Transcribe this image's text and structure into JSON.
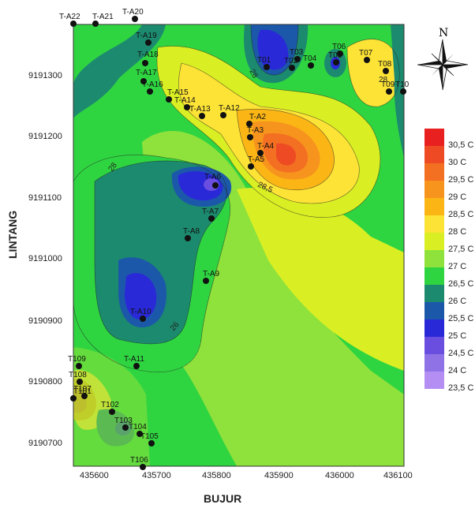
{
  "map": {
    "xlabel": "BUJUR",
    "ylabel": "LINTANG",
    "x_ticks": [
      "435600",
      "435700",
      "435800",
      "435900",
      "436000",
      "436100"
    ],
    "y_ticks": [
      "9191300",
      "9191200",
      "9191100",
      "9191000",
      "9190900",
      "9190800",
      "9190700"
    ],
    "north_label": "N",
    "contour_labels": [
      "28",
      "28",
      "28,5",
      "28",
      "26"
    ],
    "stations": [
      {
        "label": "T-A22"
      },
      {
        "label": "T-A21"
      },
      {
        "label": "T-A20"
      },
      {
        "label": "T-A19"
      },
      {
        "label": "T-A18"
      },
      {
        "label": "T-A17"
      },
      {
        "label": "T-A16"
      },
      {
        "label": "T-A15"
      },
      {
        "label": "T-A14"
      },
      {
        "label": "T-A13"
      },
      {
        "label": "T-A12"
      },
      {
        "label": "T-A2"
      },
      {
        "label": "T-A3"
      },
      {
        "label": "T-A4"
      },
      {
        "label": "T-A5"
      },
      {
        "label": "T-A6"
      },
      {
        "label": "T-A7"
      },
      {
        "label": "T-A8"
      },
      {
        "label": "T-A9"
      },
      {
        "label": "T-A10"
      },
      {
        "label": "T-A11"
      },
      {
        "label": "T01"
      },
      {
        "label": "T02"
      },
      {
        "label": "T03"
      },
      {
        "label": "T04"
      },
      {
        "label": "T05"
      },
      {
        "label": "T06"
      },
      {
        "label": "T07"
      },
      {
        "label": "T08"
      },
      {
        "label": "T09"
      },
      {
        "label": "T10"
      },
      {
        "label": "T101"
      },
      {
        "label": "T102"
      },
      {
        "label": "T103"
      },
      {
        "label": "T104"
      },
      {
        "label": "T105"
      },
      {
        "label": "T106"
      },
      {
        "label": "T107"
      },
      {
        "label": "T108"
      },
      {
        "label": "T109"
      }
    ]
  },
  "legend": {
    "items": [
      {
        "label": "30,5 C",
        "color": "#e8201f"
      },
      {
        "label": "30 C",
        "color": "#ee4b24"
      },
      {
        "label": "29,5 C",
        "color": "#f36f22"
      },
      {
        "label": "29 C",
        "color": "#f7941d"
      },
      {
        "label": "28,5 C",
        "color": "#fbb616"
      },
      {
        "label": "28 C",
        "color": "#fde336"
      },
      {
        "label": "27,5 C",
        "color": "#d9ef23"
      },
      {
        "label": "27 C",
        "color": "#8fe23b"
      },
      {
        "label": "26,5 C",
        "color": "#2fd541"
      },
      {
        "label": "26 C",
        "color": "#1c8a6e"
      },
      {
        "label": "25,5 C",
        "color": "#1c58a9"
      },
      {
        "label": "25 C",
        "color": "#2a29d8"
      },
      {
        "label": "24,5 C",
        "color": "#6a4ee0"
      },
      {
        "label": "24 C",
        "color": "#8f73e6"
      },
      {
        "label": "23,5 C",
        "color": "#b48ef2"
      }
    ]
  }
}
